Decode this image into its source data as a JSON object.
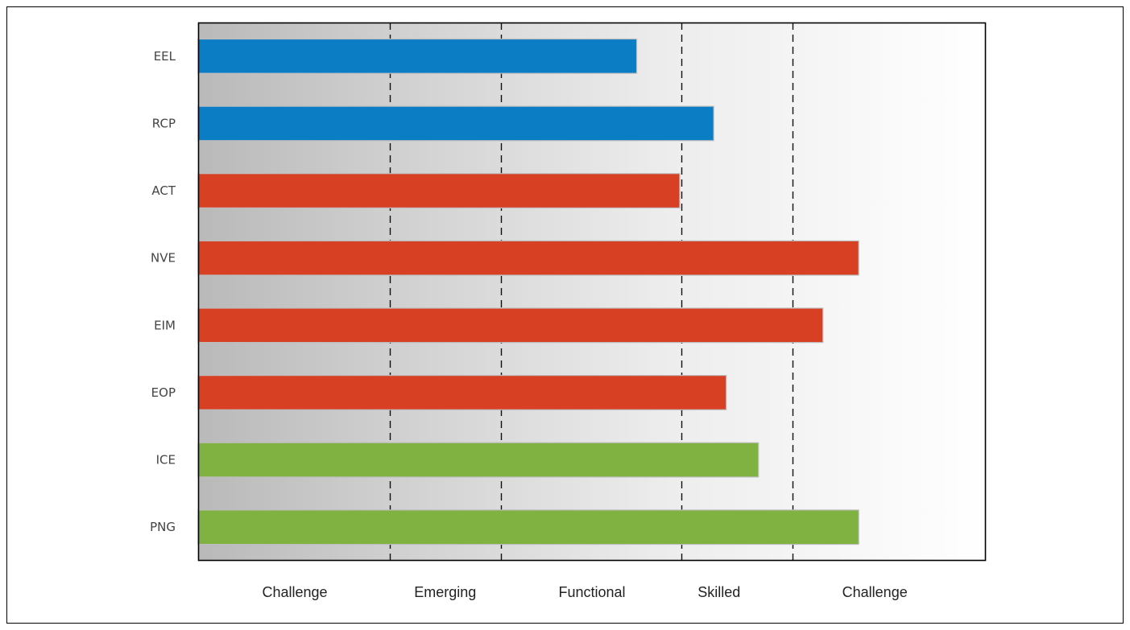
{
  "chart_data": {
    "type": "bar",
    "orientation": "horizontal",
    "categories": [
      "EEL",
      "RCP",
      "ACT",
      "NVE",
      "EIM",
      "EOP",
      "ICE",
      "PNG"
    ],
    "values": [
      2.45,
      2.88,
      2.69,
      3.69,
      3.49,
      2.95,
      3.13,
      3.69
    ],
    "bar_colors": [
      "#0a7dc5",
      "#0a7dc5",
      "#d84024",
      "#d84024",
      "#d84024",
      "#d84024",
      "#7fb240",
      "#7fb240"
    ],
    "xlim": [
      0,
      4.4
    ],
    "zone_boundaries": [
      1.07,
      1.69,
      2.7,
      3.32
    ],
    "zones": [
      {
        "label": "Challenge",
        "center": 0.54
      },
      {
        "label": "Emerging",
        "center": 1.38
      },
      {
        "label": "Functional",
        "center": 2.2
      },
      {
        "label": "Skilled",
        "center": 2.91
      },
      {
        "label": "Challenge",
        "center": 3.78
      }
    ],
    "title": "",
    "xlabel": "",
    "ylabel": "",
    "grid": false,
    "background": "gradient grey (left) to white (right)"
  }
}
